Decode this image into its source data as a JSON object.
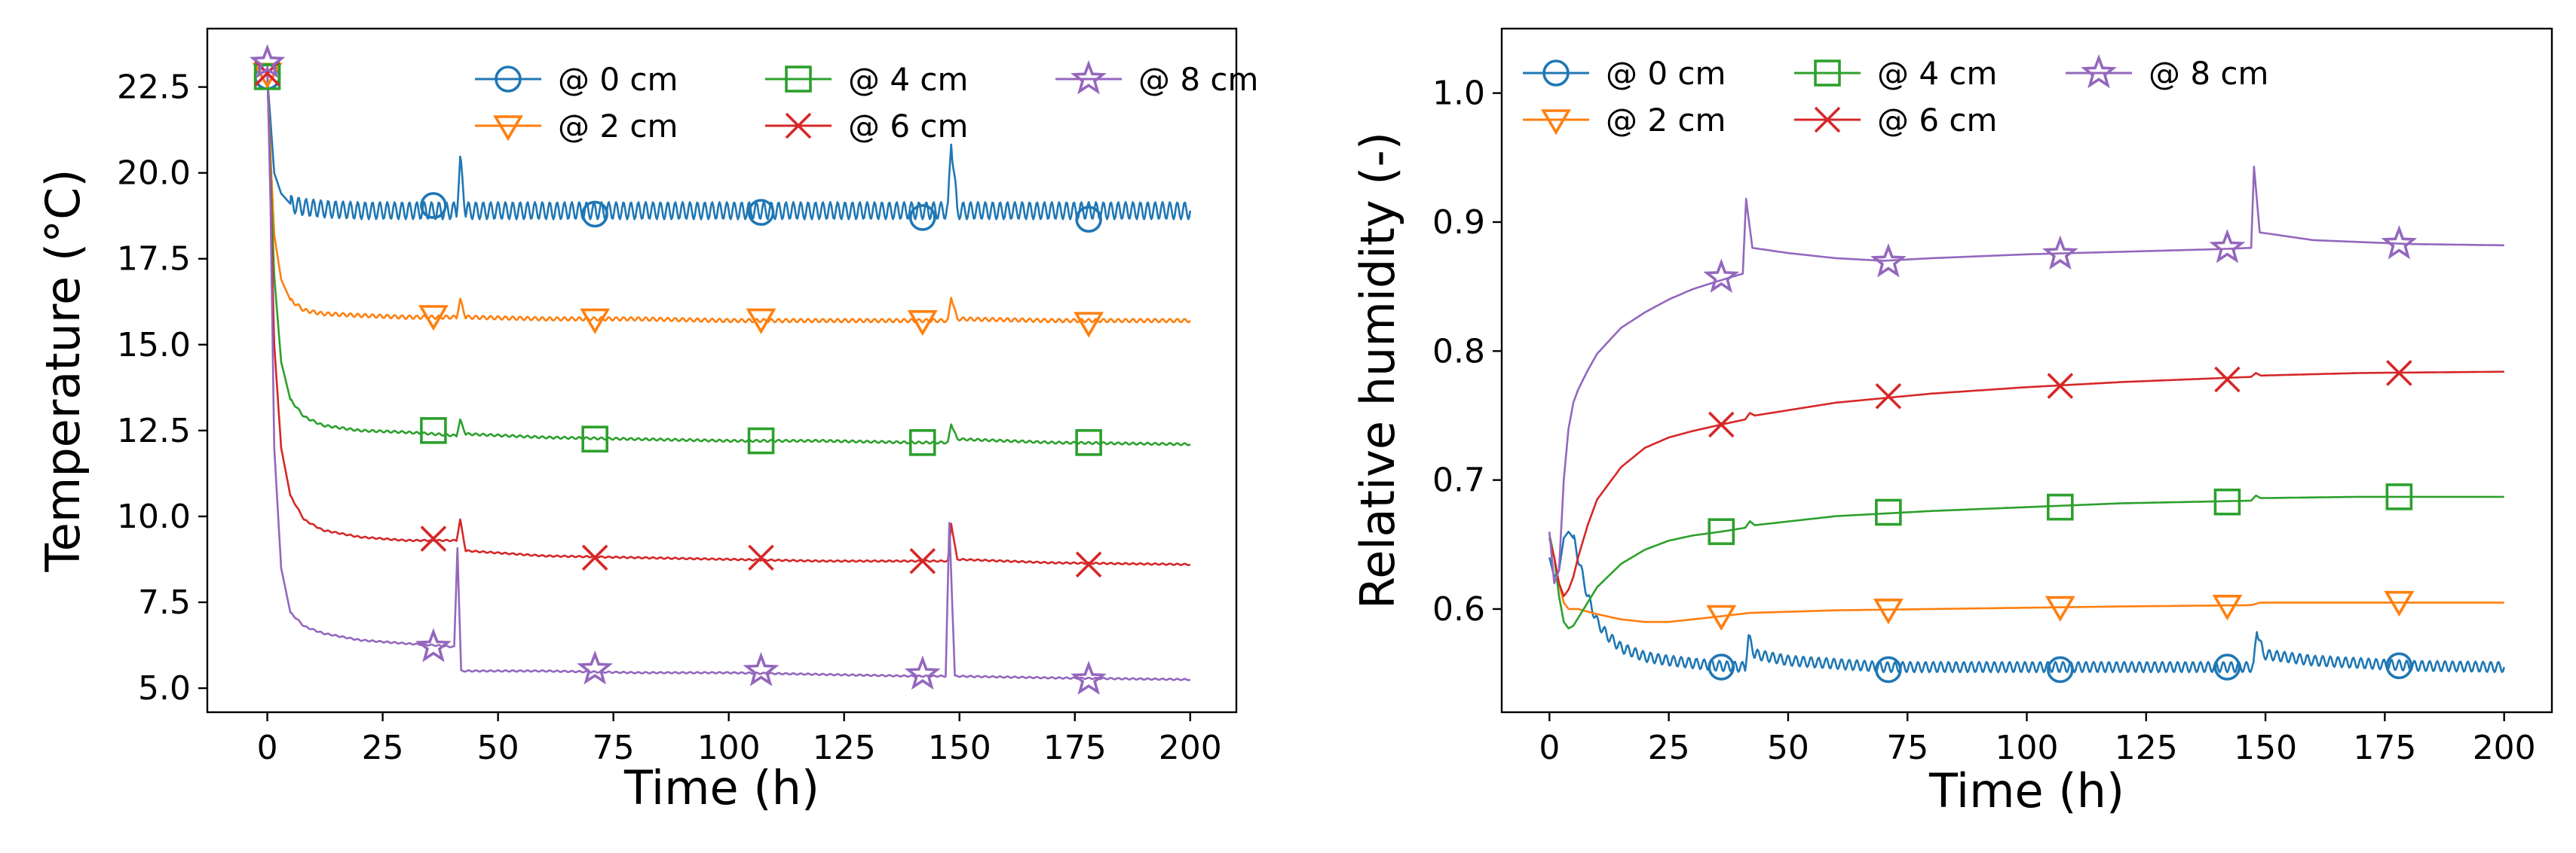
{
  "colors": {
    "s0": "#1f77b4",
    "s2": "#ff7f0e",
    "s4": "#2ca02c",
    "s6": "#d62728",
    "s8": "#9467bd"
  },
  "chart_data": [
    {
      "type": "line",
      "title": "",
      "xlabel": "Time (h)",
      "ylabel": "Temperature (°C)",
      "xlim": [
        -13,
        210
      ],
      "ylim": [
        4.3,
        24.2
      ],
      "xticks": [
        0,
        25,
        50,
        75,
        100,
        125,
        150,
        175,
        200
      ],
      "xtick_labels": [
        "0",
        "25",
        "50",
        "75",
        "100",
        "125",
        "150",
        "175",
        "200"
      ],
      "yticks": [
        5.0,
        7.5,
        10.0,
        12.5,
        15.0,
        17.5,
        20.0,
        22.5
      ],
      "ytick_labels": [
        "5.0",
        "7.5",
        "10.0",
        "12.5",
        "15.0",
        "17.5",
        "20.0",
        "22.5"
      ],
      "legend_position": "top-right",
      "legend_columns": 3,
      "series": [
        {
          "name": "@ 0 cm",
          "marker": "circle",
          "color_key": "s0",
          "x": [
            0,
            0.7,
            1.5,
            3,
            5,
            8,
            12,
            20,
            30,
            36,
            41,
            41.8,
            43,
            60,
            80,
            100,
            120,
            140,
            147.5,
            148.2,
            149.5,
            170,
            200
          ],
          "y": [
            22.8,
            21.5,
            20.0,
            19.4,
            19.1,
            19.0,
            18.95,
            18.9,
            18.9,
            18.9,
            18.9,
            20.3,
            18.9,
            18.9,
            18.9,
            18.9,
            18.9,
            18.9,
            18.9,
            21.0,
            18.9,
            18.9,
            18.9
          ],
          "oscillation": 0.25,
          "marker_x": [
            0,
            36,
            71,
            107,
            142,
            178
          ],
          "marker_y": [
            22.8,
            19.05,
            18.8,
            18.85,
            18.7,
            18.65
          ]
        },
        {
          "name": "@ 2 cm",
          "marker": "triangle-down",
          "color_key": "s2",
          "x": [
            0,
            0.7,
            1.5,
            3,
            5,
            8,
            12,
            20,
            30,
            36,
            41,
            41.8,
            43,
            60,
            80,
            100,
            120,
            140,
            147.5,
            148.2,
            149.5,
            170,
            200
          ],
          "y": [
            22.9,
            20.5,
            18.2,
            16.9,
            16.3,
            16.0,
            15.9,
            15.85,
            15.8,
            15.8,
            15.8,
            16.3,
            15.8,
            15.75,
            15.75,
            15.7,
            15.7,
            15.7,
            15.7,
            16.4,
            15.75,
            15.7,
            15.7
          ],
          "oscillation": 0.05,
          "marker_x": [
            0,
            36,
            71,
            107,
            142,
            178
          ],
          "marker_y": [
            22.9,
            15.85,
            15.75,
            15.75,
            15.7,
            15.65
          ]
        },
        {
          "name": "@ 4 cm",
          "marker": "square",
          "color_key": "s4",
          "x": [
            0,
            0.7,
            1.5,
            3,
            5,
            8,
            12,
            20,
            30,
            36,
            41,
            41.8,
            43,
            60,
            80,
            100,
            120,
            140,
            147.5,
            148.2,
            149.5,
            170,
            200
          ],
          "y": [
            23.0,
            20.0,
            17.0,
            14.5,
            13.4,
            12.9,
            12.65,
            12.5,
            12.45,
            12.4,
            12.35,
            12.8,
            12.4,
            12.3,
            12.25,
            12.2,
            12.2,
            12.15,
            12.15,
            12.7,
            12.25,
            12.15,
            12.1
          ],
          "oscillation": 0.03,
          "marker_x": [
            0,
            36,
            71,
            107,
            142,
            178
          ],
          "marker_y": [
            22.8,
            12.5,
            12.25,
            12.2,
            12.15,
            12.15
          ]
        },
        {
          "name": "@ 6 cm",
          "marker": "x",
          "color_key": "s6",
          "x": [
            0,
            0.7,
            1.5,
            3,
            5,
            8,
            12,
            20,
            30,
            36,
            41,
            41.8,
            43,
            60,
            80,
            100,
            120,
            140,
            147.5,
            148.2,
            149.5,
            170,
            200
          ],
          "y": [
            23.0,
            19.5,
            15.0,
            12.0,
            10.6,
            9.9,
            9.6,
            9.4,
            9.3,
            9.3,
            9.3,
            9.9,
            9.0,
            8.85,
            8.8,
            8.75,
            8.7,
            8.7,
            8.7,
            9.8,
            8.75,
            8.65,
            8.6
          ],
          "oscillation": 0.02,
          "marker_x": [
            0,
            36,
            71,
            107,
            142,
            178
          ],
          "marker_y": [
            22.9,
            9.35,
            8.8,
            8.8,
            8.7,
            8.6
          ]
        },
        {
          "name": "@ 8 cm",
          "marker": "star",
          "color_key": "s8",
          "x": [
            0,
            0.7,
            1.5,
            3,
            5,
            8,
            12,
            20,
            30,
            36,
            40.5,
            41.2,
            42,
            60,
            80,
            100,
            120,
            140,
            147,
            147.8,
            149,
            170,
            200
          ],
          "y": [
            23.2,
            19.0,
            12.0,
            8.5,
            7.2,
            6.8,
            6.6,
            6.4,
            6.3,
            6.25,
            6.2,
            9.1,
            5.5,
            5.5,
            5.45,
            5.45,
            5.4,
            5.35,
            5.35,
            9.8,
            5.35,
            5.3,
            5.25
          ],
          "oscillation": 0.02,
          "marker_x": [
            0,
            36,
            71,
            107,
            142,
            178
          ],
          "marker_y": [
            23.2,
            6.2,
            5.55,
            5.5,
            5.4,
            5.25
          ]
        }
      ]
    },
    {
      "type": "line",
      "title": "",
      "xlabel": "Time (h)",
      "ylabel": "Relative humidity (-)",
      "xlim": [
        -10,
        210
      ],
      "ylim": [
        0.52,
        1.05
      ],
      "xticks": [
        0,
        25,
        50,
        75,
        100,
        125,
        150,
        175,
        200
      ],
      "xtick_labels": [
        "0",
        "25",
        "50",
        "75",
        "100",
        "125",
        "150",
        "175",
        "200"
      ],
      "yticks": [
        0.6,
        0.7,
        0.8,
        0.9,
        1.0
      ],
      "ytick_labels": [
        "0.6",
        "0.7",
        "0.8",
        "0.9",
        "1.0"
      ],
      "legend_position": "top-left",
      "legend_columns": 3,
      "series": [
        {
          "name": "@ 0 cm",
          "marker": "circle",
          "color_key": "s0",
          "x": [
            0,
            1,
            2,
            3,
            4,
            5,
            6,
            8,
            10,
            12,
            15,
            20,
            25,
            30,
            35,
            41,
            41.7,
            43,
            50,
            70,
            100,
            130,
            147.5,
            148.2,
            149.5,
            160,
            180,
            200
          ],
          "y": [
            0.64,
            0.625,
            0.63,
            0.655,
            0.66,
            0.655,
            0.64,
            0.61,
            0.59,
            0.58,
            0.57,
            0.563,
            0.56,
            0.558,
            0.556,
            0.555,
            0.578,
            0.565,
            0.56,
            0.555,
            0.555,
            0.555,
            0.555,
            0.585,
            0.565,
            0.56,
            0.556,
            0.555
          ],
          "oscillation": 0.004,
          "marker_x": [
            36,
            71,
            107,
            142,
            178
          ],
          "marker_y": [
            0.555,
            0.553,
            0.553,
            0.555,
            0.556
          ]
        },
        {
          "name": "@ 2 cm",
          "marker": "triangle-down",
          "color_key": "s2",
          "x": [
            0,
            1,
            2,
            3,
            4,
            6,
            8,
            10,
            15,
            20,
            25,
            30,
            35,
            42,
            60,
            80,
            100,
            120,
            147,
            149,
            170,
            200
          ],
          "y": [
            0.655,
            0.64,
            0.62,
            0.605,
            0.6,
            0.6,
            0.598,
            0.596,
            0.592,
            0.59,
            0.59,
            0.592,
            0.594,
            0.597,
            0.599,
            0.6,
            0.601,
            0.602,
            0.603,
            0.605,
            0.605,
            0.605
          ],
          "oscillation": 0,
          "marker_x": [
            36,
            71,
            107,
            142,
            178
          ],
          "marker_y": [
            0.595,
            0.6,
            0.602,
            0.603,
            0.606
          ]
        },
        {
          "name": "@ 4 cm",
          "marker": "square",
          "color_key": "s4",
          "x": [
            0,
            1,
            2,
            3,
            4,
            5,
            6,
            8,
            10,
            15,
            20,
            25,
            30,
            36,
            41,
            42,
            43,
            60,
            80,
            100,
            120,
            147,
            148,
            149,
            170,
            200
          ],
          "y": [
            0.658,
            0.64,
            0.61,
            0.59,
            0.585,
            0.587,
            0.593,
            0.605,
            0.617,
            0.635,
            0.646,
            0.653,
            0.657,
            0.66,
            0.663,
            0.668,
            0.665,
            0.672,
            0.676,
            0.679,
            0.682,
            0.684,
            0.688,
            0.686,
            0.687,
            0.687
          ],
          "oscillation": 0,
          "marker_x": [
            36,
            71,
            107,
            142,
            178
          ],
          "marker_y": [
            0.66,
            0.675,
            0.679,
            0.683,
            0.687
          ]
        },
        {
          "name": "@ 6 cm",
          "marker": "x",
          "color_key": "s6",
          "x": [
            0,
            1,
            2,
            3,
            4,
            5,
            6,
            8,
            10,
            15,
            20,
            25,
            30,
            36,
            41,
            42,
            43,
            60,
            80,
            100,
            120,
            147,
            148,
            149,
            170,
            200
          ],
          "y": [
            0.655,
            0.64,
            0.62,
            0.61,
            0.615,
            0.625,
            0.64,
            0.665,
            0.685,
            0.71,
            0.725,
            0.733,
            0.738,
            0.743,
            0.747,
            0.752,
            0.75,
            0.76,
            0.767,
            0.772,
            0.776,
            0.78,
            0.783,
            0.781,
            0.783,
            0.784
          ],
          "oscillation": 0,
          "marker_x": [
            36,
            71,
            107,
            142,
            178
          ],
          "marker_y": [
            0.743,
            0.765,
            0.773,
            0.778,
            0.783
          ]
        },
        {
          "name": "@ 8 cm",
          "marker": "star",
          "color_key": "s8",
          "x": [
            0,
            1,
            2,
            3,
            4,
            5,
            6,
            8,
            10,
            15,
            20,
            25,
            30,
            36,
            40.5,
            41.2,
            42.5,
            50,
            60,
            70,
            80,
            100,
            120,
            140,
            147,
            147.6,
            148.8,
            160,
            180,
            200
          ],
          "y": [
            0.66,
            0.62,
            0.63,
            0.7,
            0.74,
            0.76,
            0.77,
            0.785,
            0.798,
            0.818,
            0.83,
            0.84,
            0.848,
            0.855,
            0.86,
            0.918,
            0.88,
            0.876,
            0.872,
            0.87,
            0.872,
            0.875,
            0.877,
            0.879,
            0.88,
            0.943,
            0.892,
            0.886,
            0.883,
            0.882
          ],
          "oscillation": 0,
          "marker_x": [
            36,
            71,
            107,
            142,
            178
          ],
          "marker_y": [
            0.857,
            0.869,
            0.875,
            0.88,
            0.883
          ]
        }
      ]
    }
  ]
}
